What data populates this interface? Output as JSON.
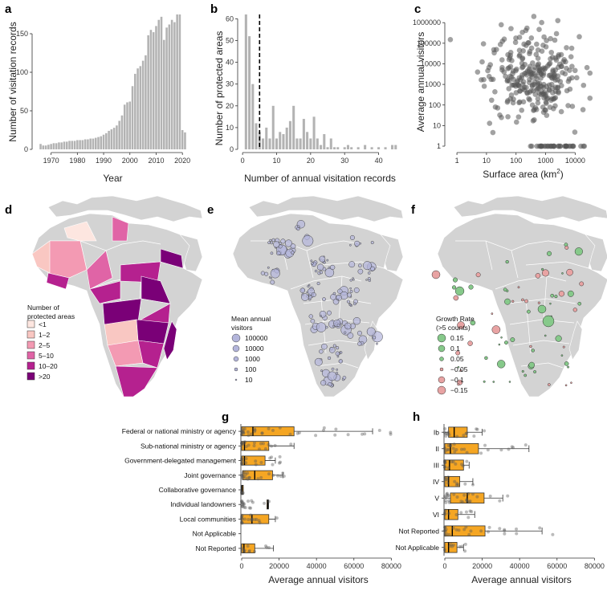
{
  "panels": {
    "a": "a",
    "b": "b",
    "c": "c",
    "d": "d",
    "e": "e",
    "f": "f",
    "g": "g",
    "h": "h"
  },
  "chart_data": [
    {
      "id": "a",
      "type": "bar",
      "xlabel": "Year",
      "ylabel": "Number of visitation records",
      "xlim": [
        1964,
        2023
      ],
      "ylim": [
        0,
        175
      ],
      "xticks": [
        1970,
        1980,
        1990,
        2000,
        2010,
        2020
      ],
      "yticks": [
        0,
        50,
        100,
        150
      ],
      "x": [
        1966,
        1967,
        1968,
        1969,
        1970,
        1971,
        1972,
        1973,
        1974,
        1975,
        1976,
        1977,
        1978,
        1979,
        1980,
        1981,
        1982,
        1983,
        1984,
        1985,
        1986,
        1987,
        1988,
        1989,
        1990,
        1991,
        1992,
        1993,
        1994,
        1995,
        1996,
        1997,
        1998,
        1999,
        2000,
        2001,
        2002,
        2003,
        2004,
        2005,
        2006,
        2007,
        2008,
        2009,
        2010,
        2011,
        2012,
        2013,
        2014,
        2015,
        2016,
        2017,
        2018,
        2019,
        2020,
        2021
      ],
      "values": [
        7,
        5,
        5,
        6,
        7,
        8,
        8,
        9,
        9,
        10,
        10,
        11,
        11,
        11,
        12,
        12,
        12,
        13,
        13,
        14,
        14,
        15,
        16,
        17,
        19,
        21,
        24,
        26,
        28,
        31,
        37,
        44,
        58,
        61,
        62,
        82,
        98,
        105,
        108,
        115,
        122,
        148,
        155,
        152,
        160,
        168,
        172,
        142,
        158,
        162,
        168,
        165,
        175,
        175,
        25,
        22
      ]
    },
    {
      "id": "b",
      "type": "bar",
      "xlabel": "Number of annual visitation records",
      "ylabel": "Number of protected areas",
      "xlim": [
        -0.5,
        46
      ],
      "ylim": [
        0,
        62
      ],
      "xticks": [
        0,
        10,
        20,
        30,
        40
      ],
      "yticks": [
        0,
        10,
        20,
        30,
        40,
        50,
        60
      ],
      "reference_line_x": 5,
      "x": [
        1,
        2,
        3,
        4,
        5,
        6,
        7,
        8,
        9,
        10,
        11,
        12,
        13,
        14,
        15,
        16,
        17,
        18,
        19,
        20,
        21,
        22,
        23,
        24,
        25,
        26,
        27,
        28,
        30,
        31,
        32,
        34,
        36,
        38,
        40,
        42,
        44,
        45
      ],
      "values": [
        62,
        52,
        30,
        12,
        8,
        5,
        10,
        5,
        20,
        5,
        8,
        7,
        10,
        13,
        20,
        5,
        5,
        14,
        8,
        5,
        15,
        5,
        2,
        7,
        1,
        5,
        1,
        1,
        1,
        2,
        1,
        1,
        2,
        1,
        1,
        1,
        2,
        2
      ]
    },
    {
      "id": "c",
      "type": "scatter",
      "xlabel": "Surface area (km²)",
      "xlabel_base": "Surface area (km",
      "xlabel_sup": "2",
      "xlabel_end": ")",
      "ylabel": "Average annual visitors",
      "xscale": "log",
      "yscale": "log",
      "xticks": [
        "1",
        "10",
        "100",
        "1000",
        "10000"
      ],
      "yticks": [
        "1",
        "10",
        "100",
        "1000",
        "10000",
        "100000",
        "1000000"
      ],
      "xlim": [
        0.5,
        60000
      ],
      "ylim": [
        0.7,
        2500000
      ]
    },
    {
      "id": "g",
      "type": "boxplot",
      "xlabel": "Average annual visitors",
      "xlim": [
        0,
        82000
      ],
      "xticks": [
        "0",
        "20000",
        "40000",
        "60000",
        "80000"
      ],
      "categories": [
        "Federal or national ministry or agency",
        "Sub-national ministry or agency",
        "Government-delegated management",
        "Joint governance",
        "Collaborative governance",
        "Individual landowners",
        "Local communities",
        "Not Applicable",
        "Not Reported"
      ],
      "boxes": [
        {
          "q1": 0,
          "median": 6000,
          "q3": 28000,
          "wlo": 0,
          "whi": 70000
        },
        {
          "q1": 0,
          "median": 1500,
          "q3": 14500,
          "wlo": 0,
          "whi": 28000
        },
        {
          "q1": 0,
          "median": 1500,
          "q3": 12500,
          "wlo": 0,
          "whi": 18000
        },
        {
          "q1": 500,
          "median": 7000,
          "q3": 16500,
          "wlo": 0,
          "whi": 22000
        },
        {
          "q1": 0,
          "median": 200,
          "q3": 600,
          "wlo": 0,
          "whi": 800
        },
        {
          "q1": 13500,
          "median": 14000,
          "q3": 14300,
          "wlo": 13500,
          "whi": 14300
        },
        {
          "q1": 0,
          "median": 5500,
          "q3": 14500,
          "wlo": 0,
          "whi": 18000
        },
        null,
        {
          "q1": 0,
          "median": 1200,
          "q3": 7000,
          "wlo": 0,
          "whi": 17000
        }
      ]
    },
    {
      "id": "h",
      "type": "boxplot",
      "xlabel": "Average annual visitors",
      "xlim": [
        0,
        82000
      ],
      "xticks": [
        "0",
        "20000",
        "40000",
        "60000",
        "80000"
      ],
      "categories": [
        "Ib",
        "II",
        "III",
        "IV",
        "V",
        "VI",
        "Not Reported",
        "Not Applicable"
      ],
      "boxes": [
        {
          "q1": 2000,
          "median": 5000,
          "q3": 12000,
          "wlo": 0,
          "whi": 20000
        },
        {
          "q1": 0,
          "median": 3000,
          "q3": 18000,
          "wlo": 0,
          "whi": 45000
        },
        {
          "q1": 0,
          "median": 2500,
          "q3": 10000,
          "wlo": 0,
          "whi": 13000
        },
        {
          "q1": 0,
          "median": 2000,
          "q3": 8000,
          "wlo": 0,
          "whi": 15000
        },
        {
          "q1": 3000,
          "median": 12000,
          "q3": 21000,
          "wlo": 0,
          "whi": 31000
        },
        {
          "q1": 0,
          "median": 2000,
          "q3": 7000,
          "wlo": 0,
          "whi": 16000
        },
        {
          "q1": 0,
          "median": 4000,
          "q3": 21500,
          "wlo": 0,
          "whi": 52000
        },
        {
          "q1": 0,
          "median": 2000,
          "q3": 6500,
          "wlo": 0,
          "whi": 10000
        }
      ]
    }
  ],
  "legend_d": {
    "title1": "Number of",
    "title2": "protected areas",
    "items": [
      "<1",
      "1–2",
      "2–5",
      "5–10",
      "10–20",
      ">20"
    ],
    "colors": [
      "#fde6e0",
      "#f9c7c2",
      "#f39ab3",
      "#e064a6",
      "#b5218f",
      "#7a0077"
    ]
  },
  "legend_e": {
    "title1": "Mean annual",
    "title2": "visitors",
    "items": [
      "100000",
      "10000",
      "1000",
      "100",
      "10"
    ],
    "color": "#b3b5db"
  },
  "legend_f": {
    "title1": "Growth Rate",
    "title2": "(>5 counts)",
    "items": [
      "0.15",
      "0.1",
      "0.05",
      "−0.05",
      "−0.1",
      "−0.15"
    ],
    "pos_color": "#86c98a",
    "neg_color": "#e8a3a3"
  },
  "colors": {
    "bar": "#b3b3b3",
    "box": "#f5a623",
    "point": "#555555"
  }
}
